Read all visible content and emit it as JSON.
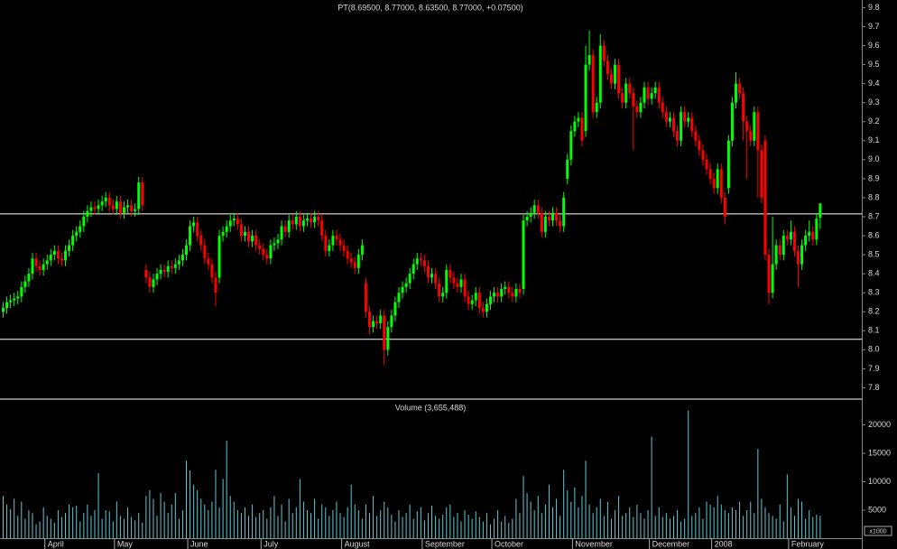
{
  "chart_data": {
    "type": "candlestick",
    "title": "PT(8.69500, 8.77000, 8.63500, 8.77000, +0.07500)",
    "categories": [
      null,
      null,
      null,
      null,
      null,
      null,
      null,
      null,
      null,
      null,
      null,
      null,
      "April",
      null,
      null,
      null,
      null,
      null,
      null,
      null,
      null,
      null,
      null,
      null,
      null,
      null,
      null,
      null,
      null,
      null,
      null,
      "May",
      null,
      null,
      null,
      null,
      null,
      null,
      null,
      null,
      null,
      null,
      null,
      null,
      null,
      null,
      null,
      null,
      null,
      null,
      null,
      "June",
      null,
      null,
      null,
      null,
      null,
      null,
      null,
      null,
      null,
      null,
      null,
      null,
      null,
      null,
      null,
      null,
      null,
      null,
      null,
      "July",
      null,
      null,
      null,
      null,
      null,
      null,
      null,
      null,
      null,
      null,
      null,
      null,
      null,
      null,
      null,
      null,
      null,
      null,
      null,
      null,
      null,
      "August",
      null,
      null,
      null,
      null,
      null,
      null,
      null,
      null,
      null,
      null,
      null,
      null,
      null,
      null,
      null,
      null,
      null,
      null,
      null,
      null,
      null,
      "September",
      null,
      null,
      null,
      null,
      null,
      null,
      null,
      null,
      null,
      null,
      null,
      null,
      null,
      null,
      null,
      null,
      null,
      null,
      "October",
      null,
      null,
      null,
      null,
      null,
      null,
      null,
      null,
      null,
      null,
      null,
      null,
      null,
      null,
      null,
      null,
      null,
      null,
      null,
      null,
      null,
      "November",
      null,
      null,
      null,
      null,
      null,
      null,
      null,
      null,
      null,
      null,
      null,
      null,
      null,
      null,
      null,
      null,
      null,
      null,
      null,
      null,
      "December",
      null,
      null,
      null,
      null,
      null,
      null,
      null,
      null,
      null,
      null,
      null,
      null,
      null,
      null,
      null,
      null,
      "2008",
      null,
      null,
      null,
      null,
      null,
      null,
      null,
      null,
      null,
      null,
      null,
      null,
      null,
      null,
      null,
      null,
      null,
      null,
      null,
      null,
      "February",
      null,
      null,
      null,
      null,
      null,
      null,
      null,
      null
    ],
    "open": [
      8.2,
      8.22,
      8.25,
      8.26,
      8.27,
      8.28,
      8.33,
      8.36,
      8.4,
      8.48,
      8.44,
      8.42,
      8.45,
      8.47,
      8.5,
      8.52,
      8.48,
      8.47,
      8.52,
      8.55,
      8.6,
      8.62,
      8.65,
      8.7,
      8.73,
      8.75,
      8.74,
      8.76,
      8.78,
      8.8,
      8.76,
      8.74,
      8.78,
      8.72,
      8.75,
      8.76,
      8.73,
      8.74,
      8.88,
      8.42,
      8.38,
      8.33,
      8.37,
      8.4,
      8.42,
      8.41,
      8.44,
      8.43,
      8.45,
      8.47,
      8.5,
      8.55,
      8.65,
      8.67,
      8.6,
      8.55,
      8.48,
      8.45,
      8.38,
      8.38,
      8.6,
      8.62,
      8.65,
      8.68,
      8.69,
      8.66,
      8.6,
      8.62,
      8.57,
      8.6,
      8.55,
      8.53,
      8.5,
      8.48,
      8.55,
      8.56,
      8.58,
      8.65,
      8.62,
      8.68,
      8.66,
      8.7,
      8.65,
      8.68,
      8.69,
      8.67,
      8.7,
      8.68,
      8.6,
      8.52,
      8.55,
      8.6,
      8.58,
      8.55,
      8.52,
      8.48,
      8.46,
      8.43,
      8.5,
      8.35,
      8.2,
      8.12,
      8.15,
      8.14,
      8.18,
      8.0,
      8.12,
      8.18,
      8.25,
      8.3,
      8.33,
      8.35,
      8.4,
      8.45,
      8.48,
      8.47,
      8.44,
      8.38,
      8.4,
      8.35,
      8.28,
      8.3,
      8.42,
      8.38,
      8.35,
      8.33,
      8.37,
      8.28,
      8.24,
      8.26,
      8.3,
      8.22,
      8.2,
      8.24,
      8.28,
      8.3,
      8.28,
      8.32,
      8.33,
      8.3,
      8.28,
      8.32,
      8.32,
      8.68,
      8.7,
      8.72,
      8.76,
      8.72,
      8.62,
      8.7,
      8.68,
      8.72,
      8.68,
      8.65,
      8.9,
      9.0,
      9.15,
      9.2,
      9.22,
      9.15,
      9.5,
      9.55,
      9.25,
      9.3,
      9.6,
      9.52,
      9.45,
      9.4,
      9.5,
      9.35,
      9.3,
      9.4,
      9.35,
      9.28,
      9.25,
      9.3,
      9.38,
      9.32,
      9.35,
      9.38,
      9.3,
      9.25,
      9.2,
      9.22,
      9.15,
      9.1,
      9.25,
      9.2,
      9.22,
      9.15,
      9.1,
      9.05,
      9.0,
      8.95,
      8.9,
      8.85,
      8.95,
      8.8,
      8.85,
      9.1,
      9.3,
      9.4,
      9.35,
      9.2,
      9.15,
      9.1,
      9.25,
      9.05,
      9.1,
      8.5,
      8.3,
      8.45,
      8.55,
      8.5,
      8.6,
      8.58,
      8.62,
      8.52,
      8.45,
      8.55,
      8.6,
      8.62,
      8.58,
      8.695
    ],
    "high": [
      8.25,
      8.28,
      8.29,
      8.3,
      8.31,
      8.36,
      8.39,
      8.43,
      8.51,
      8.51,
      8.47,
      8.48,
      8.5,
      8.53,
      8.55,
      8.55,
      8.51,
      8.55,
      8.58,
      8.63,
      8.65,
      8.68,
      8.73,
      8.76,
      8.78,
      8.78,
      8.79,
      8.81,
      8.83,
      8.83,
      8.79,
      8.81,
      8.81,
      8.78,
      8.79,
      8.79,
      8.77,
      8.91,
      8.91,
      8.45,
      8.41,
      8.4,
      8.43,
      8.45,
      8.45,
      8.47,
      8.47,
      8.48,
      8.5,
      8.53,
      8.58,
      8.68,
      8.7,
      8.7,
      8.63,
      8.58,
      8.51,
      8.48,
      8.41,
      8.63,
      8.65,
      8.68,
      8.71,
      8.72,
      8.72,
      8.69,
      8.65,
      8.65,
      8.63,
      8.63,
      8.58,
      8.56,
      8.53,
      8.58,
      8.59,
      8.61,
      8.68,
      8.68,
      8.71,
      8.71,
      8.73,
      8.73,
      8.71,
      8.72,
      8.72,
      8.73,
      8.73,
      8.71,
      8.63,
      8.58,
      8.63,
      8.63,
      8.61,
      8.58,
      8.55,
      8.51,
      8.49,
      8.53,
      8.58,
      8.38,
      8.23,
      8.18,
      8.18,
      8.21,
      8.21,
      8.15,
      8.21,
      8.28,
      8.33,
      8.36,
      8.38,
      8.43,
      8.48,
      8.51,
      8.51,
      8.5,
      8.47,
      8.43,
      8.43,
      8.38,
      8.33,
      8.45,
      8.45,
      8.41,
      8.38,
      8.4,
      8.4,
      8.31,
      8.29,
      8.33,
      8.33,
      8.25,
      8.27,
      8.31,
      8.33,
      8.33,
      8.35,
      8.36,
      8.36,
      8.33,
      8.35,
      8.35,
      8.71,
      8.73,
      8.75,
      8.79,
      8.79,
      8.75,
      8.73,
      8.73,
      8.75,
      8.75,
      8.71,
      8.83,
      9.03,
      9.18,
      9.23,
      9.25,
      9.25,
      9.6,
      9.68,
      9.58,
      9.33,
      9.66,
      9.63,
      9.55,
      9.48,
      9.53,
      9.53,
      9.38,
      9.43,
      9.43,
      9.38,
      9.31,
      9.33,
      9.41,
      9.41,
      9.38,
      9.41,
      9.41,
      9.33,
      9.28,
      9.25,
      9.25,
      9.18,
      9.28,
      9.28,
      9.25,
      9.25,
      9.18,
      9.13,
      9.08,
      9.03,
      8.98,
      8.93,
      8.98,
      8.98,
      8.83,
      9.13,
      9.33,
      9.46,
      9.43,
      9.38,
      9.23,
      9.18,
      9.28,
      9.28,
      9.08,
      9.13,
      8.53,
      8.7,
      8.58,
      8.58,
      8.63,
      8.63,
      8.68,
      8.65,
      8.55,
      8.58,
      8.63,
      8.68,
      8.65,
      8.72,
      8.77
    ],
    "low": [
      8.17,
      8.19,
      8.22,
      8.23,
      8.24,
      8.25,
      8.3,
      8.33,
      8.37,
      8.41,
      8.39,
      8.39,
      8.42,
      8.44,
      8.47,
      8.45,
      8.44,
      8.44,
      8.49,
      8.52,
      8.57,
      8.59,
      8.62,
      8.67,
      8.7,
      8.71,
      8.71,
      8.73,
      8.75,
      8.73,
      8.71,
      8.71,
      8.69,
      8.69,
      8.72,
      8.7,
      8.7,
      8.71,
      8.73,
      8.35,
      8.3,
      8.3,
      8.34,
      8.37,
      8.38,
      8.38,
      8.4,
      8.4,
      8.42,
      8.44,
      8.47,
      8.52,
      8.62,
      8.57,
      8.52,
      8.45,
      8.42,
      8.35,
      8.23,
      8.35,
      8.57,
      8.59,
      8.62,
      8.65,
      8.63,
      8.57,
      8.57,
      8.54,
      8.54,
      8.52,
      8.5,
      8.47,
      8.45,
      8.45,
      8.52,
      8.53,
      8.55,
      8.59,
      8.59,
      8.63,
      8.63,
      8.62,
      8.62,
      8.65,
      8.64,
      8.64,
      8.65,
      8.57,
      8.49,
      8.49,
      8.52,
      8.55,
      8.52,
      8.49,
      8.45,
      8.43,
      8.4,
      8.4,
      8.47,
      8.17,
      8.08,
      8.09,
      8.11,
      8.11,
      7.92,
      7.97,
      8.09,
      8.15,
      8.22,
      8.27,
      8.3,
      8.32,
      8.37,
      8.42,
      8.44,
      8.41,
      8.35,
      8.35,
      8.32,
      8.25,
      8.25,
      8.27,
      8.35,
      8.32,
      8.3,
      8.3,
      8.25,
      8.21,
      8.21,
      8.23,
      8.19,
      8.17,
      8.17,
      8.21,
      8.25,
      8.25,
      8.25,
      8.29,
      8.27,
      8.25,
      8.25,
      8.27,
      8.29,
      8.65,
      8.67,
      8.69,
      8.69,
      8.59,
      8.59,
      8.65,
      8.65,
      8.65,
      8.62,
      8.62,
      8.87,
      8.97,
      9.12,
      9.17,
      9.07,
      9.12,
      9.47,
      9.22,
      9.22,
      9.27,
      9.49,
      9.42,
      9.37,
      9.37,
      9.32,
      9.27,
      9.27,
      9.32,
      9.05,
      9.22,
      9.22,
      9.27,
      9.29,
      9.29,
      9.32,
      9.27,
      9.22,
      9.17,
      9.17,
      9.12,
      9.07,
      9.07,
      9.17,
      9.17,
      9.12,
      9.07,
      9.02,
      8.97,
      8.92,
      8.87,
      8.82,
      8.82,
      8.77,
      8.66,
      8.82,
      9.07,
      9.27,
      9.32,
      9.1,
      8.9,
      9.07,
      9.07,
      8.8,
      8.77,
      8.47,
      8.24,
      8.27,
      8.42,
      8.47,
      8.47,
      8.55,
      8.55,
      8.49,
      8.33,
      8.42,
      8.52,
      8.57,
      8.55,
      8.55,
      8.635
    ],
    "close": [
      8.22,
      8.25,
      8.26,
      8.27,
      8.28,
      8.33,
      8.36,
      8.4,
      8.48,
      8.44,
      8.42,
      8.45,
      8.47,
      8.5,
      8.52,
      8.48,
      8.47,
      8.52,
      8.55,
      8.6,
      8.62,
      8.65,
      8.7,
      8.73,
      8.75,
      8.74,
      8.76,
      8.78,
      8.8,
      8.76,
      8.74,
      8.78,
      8.72,
      8.75,
      8.76,
      8.73,
      8.74,
      8.88,
      8.76,
      8.38,
      8.33,
      8.37,
      8.4,
      8.42,
      8.41,
      8.44,
      8.43,
      8.45,
      8.47,
      8.5,
      8.55,
      8.65,
      8.67,
      8.6,
      8.55,
      8.48,
      8.45,
      8.38,
      8.3,
      8.6,
      8.62,
      8.65,
      8.68,
      8.69,
      8.66,
      8.6,
      8.62,
      8.57,
      8.6,
      8.55,
      8.53,
      8.5,
      8.48,
      8.55,
      8.56,
      8.58,
      8.65,
      8.62,
      8.68,
      8.66,
      8.7,
      8.65,
      8.68,
      8.69,
      8.67,
      8.7,
      8.68,
      8.6,
      8.52,
      8.55,
      8.6,
      8.58,
      8.55,
      8.52,
      8.48,
      8.46,
      8.43,
      8.5,
      8.55,
      8.2,
      8.12,
      8.15,
      8.14,
      8.18,
      8.0,
      8.12,
      8.18,
      8.25,
      8.3,
      8.33,
      8.35,
      8.4,
      8.45,
      8.48,
      8.47,
      8.44,
      8.38,
      8.4,
      8.35,
      8.28,
      8.3,
      8.42,
      8.38,
      8.35,
      8.33,
      8.37,
      8.28,
      8.24,
      8.26,
      8.3,
      8.22,
      8.2,
      8.24,
      8.28,
      8.3,
      8.28,
      8.32,
      8.33,
      8.3,
      8.28,
      8.32,
      8.3,
      8.68,
      8.7,
      8.72,
      8.76,
      8.72,
      8.62,
      8.7,
      8.68,
      8.72,
      8.68,
      8.65,
      8.8,
      9.0,
      9.15,
      9.2,
      9.22,
      9.1,
      9.5,
      9.55,
      9.25,
      9.3,
      9.6,
      9.52,
      9.45,
      9.4,
      9.5,
      9.35,
      9.3,
      9.4,
      9.35,
      9.28,
      9.25,
      9.3,
      9.38,
      9.32,
      9.35,
      9.38,
      9.3,
      9.25,
      9.2,
      9.22,
      9.15,
      9.1,
      9.25,
      9.2,
      9.22,
      9.15,
      9.1,
      9.05,
      9.0,
      8.95,
      8.9,
      8.85,
      8.95,
      8.8,
      8.7,
      9.1,
      9.3,
      9.4,
      9.35,
      9.2,
      9.15,
      9.1,
      9.25,
      9.05,
      8.8,
      8.5,
      8.3,
      8.45,
      8.55,
      8.5,
      8.6,
      8.58,
      8.62,
      8.52,
      8.45,
      8.55,
      8.6,
      8.62,
      8.58,
      8.69,
      8.77
    ],
    "volume": [
      7500,
      6000,
      5200,
      7000,
      4000,
      6500,
      3500,
      5000,
      4500,
      2500,
      3000,
      5500,
      4000,
      3500,
      2800,
      5000,
      3800,
      4500,
      6000,
      5500,
      5800,
      3000,
      4500,
      6000,
      4000,
      5000,
      11500,
      3500,
      5000,
      4800,
      3000,
      6500,
      4000,
      3500,
      5500,
      3800,
      3200,
      4500,
      2800,
      7500,
      8500,
      7000,
      4000,
      8000,
      6500,
      4500,
      6000,
      8000,
      3500,
      5000,
      13700,
      12000,
      9500,
      8500,
      7000,
      6000,
      5000,
      6500,
      12100,
      5500,
      10500,
      17200,
      7500,
      6500,
      5000,
      4500,
      5500,
      4000,
      6000,
      3800,
      4500,
      5000,
      3500,
      5500,
      7500,
      4000,
      6000,
      3000,
      7000,
      4500,
      5500,
      10500,
      6500,
      5000,
      4500,
      7000,
      3500,
      6000,
      5500,
      4000,
      5000,
      6500,
      4500,
      3800,
      5500,
      9500,
      6000,
      5000,
      3500,
      6000,
      4500,
      7500,
      4000,
      5000,
      6500,
      5500,
      4200,
      3000,
      5000,
      3800,
      4500,
      6000,
      3500,
      4800,
      5500,
      3200,
      4500,
      5800,
      4000,
      3500,
      4200,
      5500,
      6000,
      3800,
      4500,
      3000,
      5000,
      4200,
      3500,
      4800,
      3800,
      3000,
      4500,
      2500,
      3500,
      5000,
      3000,
      4000,
      2800,
      3500,
      7000,
      4500,
      11000,
      8000,
      6500,
      5000,
      7500,
      4500,
      6000,
      9500,
      5500,
      7000,
      4000,
      12100,
      8500,
      6500,
      9000,
      5500,
      7500,
      13700,
      6000,
      4500,
      5500,
      7000,
      4000,
      6500,
      3500,
      5000,
      7500,
      4000,
      4500,
      5500,
      3800,
      6000,
      4500,
      3500,
      5000,
      17900,
      4000,
      5500,
      3800,
      4500,
      3500,
      4000,
      5000,
      3000,
      3500,
      22500,
      4000,
      4500,
      5500,
      3500,
      6500,
      6000,
      5500,
      7500,
      6000,
      5000,
      4500,
      5500,
      5000,
      6500,
      4000,
      5000,
      6500,
      4500,
      15800,
      7000,
      5500,
      4500,
      4000,
      3500,
      6000,
      3000,
      11300,
      5500,
      4000,
      7000,
      6500,
      3500,
      5000,
      3800,
      4200,
      4000
    ],
    "up_color": "#00ff00",
    "down_color": "#ff0000",
    "volume_color": "#5fc8d4",
    "ylim": [
      7.75,
      9.84
    ],
    "yticks": [
      7.8,
      7.9,
      {
        "value": 8,
        "label": "8.0"
      },
      8.1,
      8.2,
      8.3,
      8.4,
      8.5,
      8.6,
      8.7,
      8.8,
      8.9,
      {
        "value": 9,
        "label": "9.0"
      },
      9.1,
      9.2,
      9.3,
      9.4,
      9.5,
      9.6,
      9.7,
      9.8
    ],
    "hlines": [
      8.715,
      8.055
    ],
    "volume_title": "Volume (3,655,488)",
    "volume_ylim": [
      0,
      24200
    ],
    "volume_yticks": [
      5000,
      10000,
      15000,
      20000
    ],
    "volume_unit": "x1000"
  }
}
